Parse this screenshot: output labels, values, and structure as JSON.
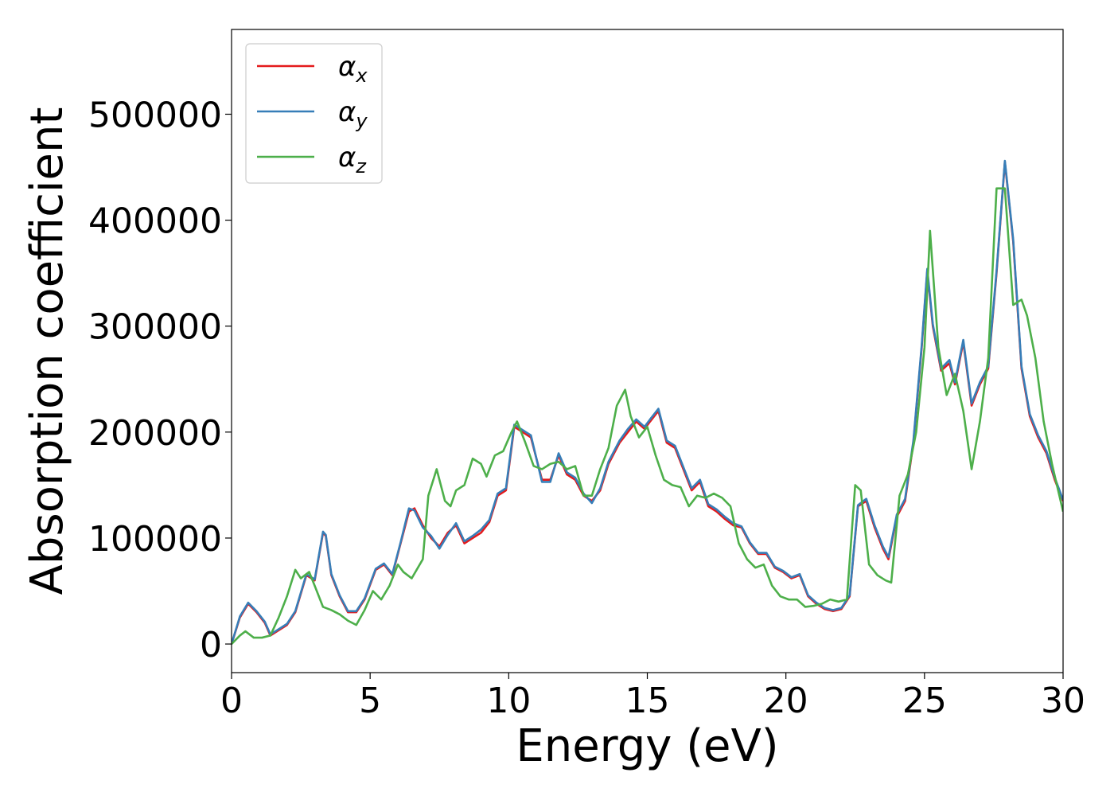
{
  "chart_data": {
    "type": "line",
    "title": "",
    "xlabel": "Energy (eV)",
    "ylabel": "Absorption coefficient",
    "xlim": [
      0,
      30
    ],
    "ylim": [
      -27000,
      580000
    ],
    "grid": false,
    "legend_placement": "top-left",
    "xticks": [
      0,
      5,
      10,
      15,
      20,
      25,
      30
    ],
    "xtick_labels": [
      "0",
      "5",
      "10",
      "15",
      "20",
      "25",
      "30"
    ],
    "yticks": [
      0,
      100000,
      200000,
      300000,
      400000,
      500000
    ],
    "ytick_labels": [
      "0",
      "100000",
      "200000",
      "300000",
      "400000",
      "500000"
    ],
    "series": [
      {
        "name": "α_x",
        "legend_base": "α",
        "legend_sub": "x",
        "color": "#e41a1c",
        "x": [
          0,
          0.3,
          0.6,
          0.9,
          1.2,
          1.4,
          1.7,
          2.0,
          2.3,
          2.7,
          3.0,
          3.3,
          3.4,
          3.6,
          3.9,
          4.2,
          4.5,
          4.8,
          5.2,
          5.5,
          5.8,
          6.1,
          6.4,
          6.6,
          6.9,
          7.2,
          7.5,
          7.8,
          8.1,
          8.4,
          8.7,
          9.0,
          9.3,
          9.6,
          9.9,
          10.2,
          10.5,
          10.8,
          11.2,
          11.5,
          11.8,
          12.1,
          12.4,
          12.7,
          13.0,
          13.3,
          13.6,
          14.0,
          14.3,
          14.6,
          14.9,
          15.1,
          15.4,
          15.7,
          16.0,
          16.3,
          16.6,
          16.9,
          17.2,
          17.5,
          17.8,
          18.1,
          18.4,
          18.7,
          19.0,
          19.3,
          19.6,
          19.9,
          20.2,
          20.5,
          20.8,
          21.1,
          21.4,
          21.7,
          22.0,
          22.3,
          22.6,
          22.9,
          23.2,
          23.5,
          23.7,
          24.0,
          24.3,
          24.6,
          24.9,
          25.1,
          25.3,
          25.6,
          25.9,
          26.1,
          26.4,
          26.7,
          27.0,
          27.3,
          27.6,
          27.9,
          28.2,
          28.5,
          28.8,
          29.1,
          29.4,
          29.7,
          30.0
        ],
        "y": [
          0,
          25000,
          38000,
          30000,
          20000,
          8000,
          13000,
          18000,
          30000,
          65000,
          60000,
          105000,
          102000,
          65000,
          45000,
          30000,
          30000,
          42000,
          70000,
          75000,
          65000,
          95000,
          125000,
          128000,
          112000,
          100000,
          92000,
          105000,
          112000,
          95000,
          100000,
          105000,
          115000,
          140000,
          145000,
          205000,
          200000,
          195000,
          155000,
          155000,
          178000,
          160000,
          155000,
          140000,
          135000,
          145000,
          170000,
          190000,
          200000,
          210000,
          203000,
          210000,
          220000,
          190000,
          185000,
          165000,
          145000,
          153000,
          130000,
          125000,
          118000,
          112000,
          110000,
          95000,
          85000,
          85000,
          72000,
          68000,
          62000,
          65000,
          45000,
          38000,
          33000,
          31000,
          33000,
          45000,
          130000,
          135000,
          110000,
          90000,
          80000,
          120000,
          135000,
          190000,
          280000,
          352000,
          300000,
          258000,
          265000,
          245000,
          285000,
          225000,
          245000,
          260000,
          350000,
          455000,
          380000,
          260000,
          215000,
          195000,
          180000,
          155000,
          135000
        ],
        "offset": 0
      },
      {
        "name": "α_y",
        "legend_base": "α",
        "legend_sub": "y",
        "color": "#377eb8",
        "x": [
          0,
          0.3,
          0.6,
          0.9,
          1.2,
          1.4,
          1.7,
          2.0,
          2.3,
          2.7,
          3.0,
          3.3,
          3.4,
          3.6,
          3.9,
          4.2,
          4.5,
          4.8,
          5.2,
          5.5,
          5.8,
          6.1,
          6.4,
          6.6,
          6.9,
          7.2,
          7.5,
          7.8,
          8.1,
          8.4,
          8.7,
          9.0,
          9.3,
          9.6,
          9.9,
          10.2,
          10.5,
          10.8,
          11.2,
          11.5,
          11.8,
          12.1,
          12.4,
          12.7,
          13.0,
          13.3,
          13.6,
          14.0,
          14.3,
          14.6,
          14.9,
          15.1,
          15.4,
          15.7,
          16.0,
          16.3,
          16.6,
          16.9,
          17.2,
          17.5,
          17.8,
          18.1,
          18.4,
          18.7,
          19.0,
          19.3,
          19.6,
          19.9,
          20.2,
          20.5,
          20.8,
          21.1,
          21.4,
          21.7,
          22.0,
          22.3,
          22.6,
          22.9,
          23.2,
          23.5,
          23.7,
          24.0,
          24.3,
          24.6,
          24.9,
          25.1,
          25.3,
          25.6,
          25.9,
          26.1,
          26.4,
          26.7,
          27.0,
          27.3,
          27.6,
          27.9,
          28.2,
          28.5,
          28.8,
          29.1,
          29.4,
          29.7,
          30.0
        ],
        "y": [
          0,
          26000,
          39000,
          31000,
          21000,
          9000,
          14000,
          19000,
          31000,
          66000,
          61000,
          106000,
          103000,
          66000,
          46000,
          31000,
          31000,
          43000,
          71000,
          76000,
          66000,
          96000,
          128000,
          126000,
          110000,
          102000,
          90000,
          103000,
          114000,
          97000,
          102000,
          108000,
          117000,
          142000,
          147000,
          207000,
          202000,
          197000,
          153000,
          153000,
          180000,
          162000,
          157000,
          142000,
          133000,
          147000,
          172000,
          192000,
          203000,
          212000,
          205000,
          212000,
          222000,
          192000,
          187000,
          167000,
          147000,
          155000,
          132000,
          127000,
          120000,
          114000,
          111000,
          96000,
          86000,
          86000,
          73000,
          69000,
          63000,
          66000,
          46000,
          39000,
          34000,
          32000,
          34000,
          46000,
          131000,
          137000,
          112000,
          92000,
          82000,
          122000,
          137000,
          192000,
          282000,
          354000,
          302000,
          260000,
          268000,
          247000,
          287000,
          227000,
          247000,
          262000,
          352000,
          456000,
          382000,
          262000,
          217000,
          197000,
          182000,
          157000,
          136000
        ],
        "offset": 0
      },
      {
        "name": "α_z",
        "legend_base": "α",
        "legend_sub": "z",
        "color": "#4daf4a",
        "x": [
          0,
          0.3,
          0.5,
          0.8,
          1.1,
          1.4,
          1.7,
          2.0,
          2.3,
          2.5,
          2.8,
          3.0,
          3.3,
          3.6,
          3.9,
          4.2,
          4.5,
          4.8,
          5.1,
          5.4,
          5.7,
          6.0,
          6.2,
          6.5,
          6.9,
          7.1,
          7.4,
          7.7,
          7.9,
          8.1,
          8.4,
          8.7,
          9.0,
          9.2,
          9.5,
          9.8,
          10.1,
          10.3,
          10.6,
          10.9,
          11.2,
          11.5,
          11.8,
          12.1,
          12.4,
          12.7,
          13.0,
          13.3,
          13.6,
          13.9,
          14.2,
          14.4,
          14.7,
          15.0,
          15.3,
          15.6,
          15.9,
          16.2,
          16.5,
          16.8,
          17.1,
          17.4,
          17.7,
          18.0,
          18.3,
          18.6,
          18.9,
          19.2,
          19.5,
          19.8,
          20.1,
          20.4,
          20.7,
          21.0,
          21.3,
          21.6,
          21.9,
          22.2,
          22.5,
          22.7,
          23.0,
          23.3,
          23.6,
          23.8,
          24.1,
          24.4,
          24.7,
          25.0,
          25.2,
          25.5,
          25.8,
          26.1,
          26.4,
          26.7,
          27.0,
          27.3,
          27.6,
          27.9,
          28.2,
          28.5,
          28.7,
          29.0,
          29.3,
          29.6,
          30.0
        ],
        "y": [
          0,
          8000,
          12000,
          6000,
          6000,
          8000,
          25000,
          45000,
          70000,
          62000,
          68000,
          55000,
          35000,
          32000,
          28000,
          22000,
          18000,
          32000,
          50000,
          42000,
          55000,
          75000,
          68000,
          62000,
          80000,
          140000,
          165000,
          135000,
          130000,
          145000,
          150000,
          175000,
          170000,
          158000,
          178000,
          182000,
          200000,
          210000,
          190000,
          168000,
          165000,
          170000,
          172000,
          165000,
          168000,
          140000,
          140000,
          165000,
          185000,
          225000,
          240000,
          215000,
          195000,
          205000,
          178000,
          155000,
          150000,
          148000,
          130000,
          140000,
          138000,
          142000,
          138000,
          130000,
          95000,
          80000,
          72000,
          75000,
          55000,
          45000,
          42000,
          42000,
          35000,
          36000,
          38000,
          42000,
          40000,
          42000,
          150000,
          145000,
          75000,
          65000,
          60000,
          58000,
          140000,
          160000,
          200000,
          280000,
          390000,
          280000,
          235000,
          255000,
          220000,
          165000,
          210000,
          270000,
          430000,
          430000,
          320000,
          325000,
          310000,
          270000,
          210000,
          170000,
          125000
        ],
        "offset": 0
      }
    ]
  }
}
